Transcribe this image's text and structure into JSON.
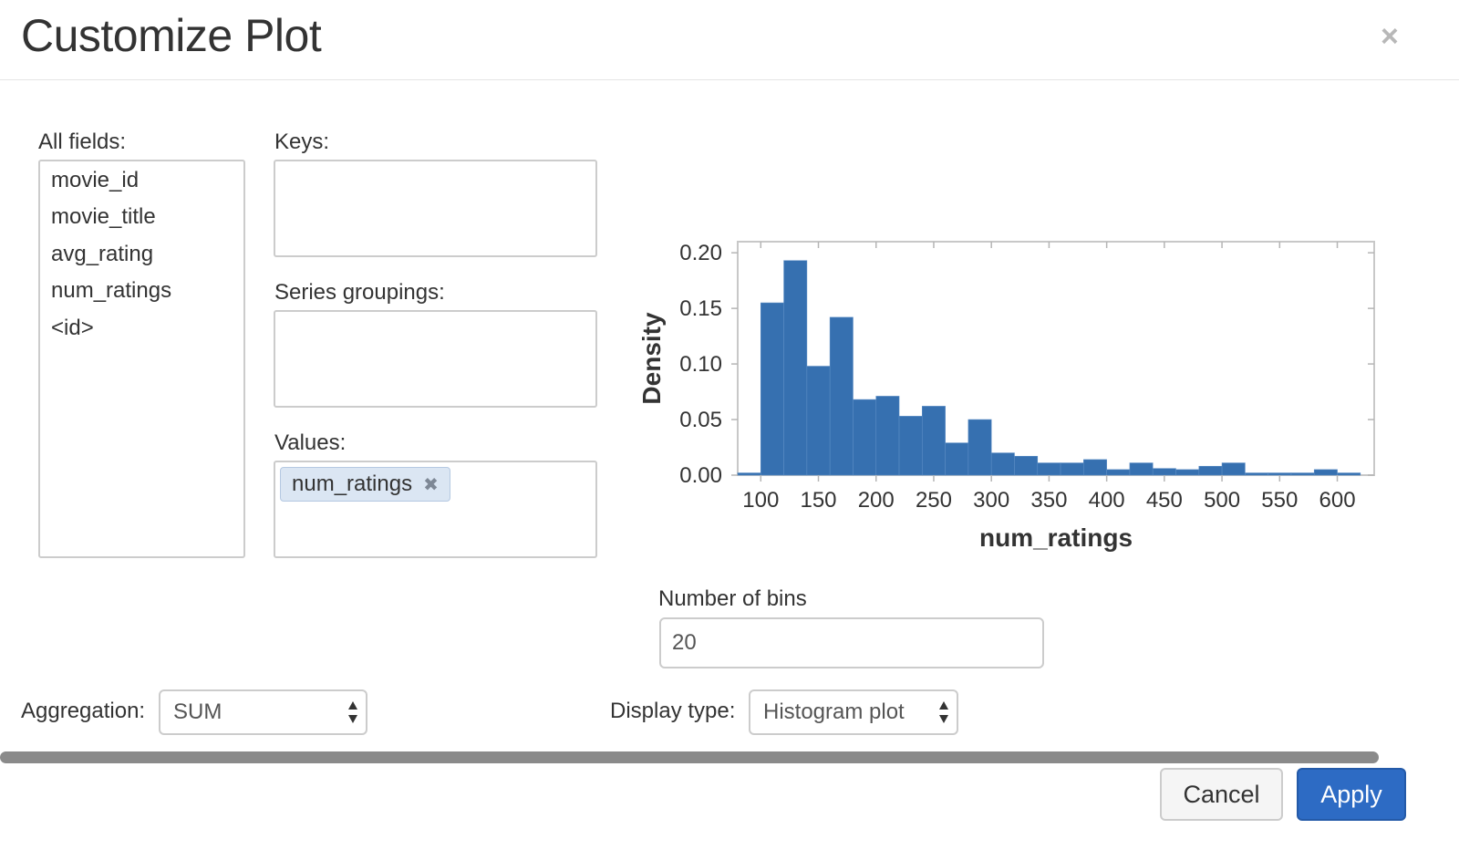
{
  "dialog": {
    "title": "Customize Plot",
    "close_label": "×"
  },
  "all_fields": {
    "label": "All fields:",
    "items": [
      "movie_id",
      "movie_title",
      "avg_rating",
      "num_ratings",
      "<id>"
    ]
  },
  "keys": {
    "label": "Keys:"
  },
  "series_groupings": {
    "label": "Series groupings:"
  },
  "values": {
    "label": "Values:",
    "chip": "num_ratings",
    "chip_remove": "✖"
  },
  "bins": {
    "label": "Number of bins",
    "value": "20"
  },
  "aggregation": {
    "label": "Aggregation:",
    "value": "SUM"
  },
  "display_type": {
    "label": "Display type:",
    "value": "Histogram plot"
  },
  "buttons": {
    "cancel": "Cancel",
    "apply": "Apply"
  },
  "colors": {
    "bar": "#3670b0",
    "primary": "#2d6bc4"
  },
  "chart_data": {
    "type": "bar",
    "xlabel": "num_ratings",
    "ylabel": "Density",
    "xlim": [
      80,
      632
    ],
    "ylim": [
      0,
      0.21
    ],
    "xticks": [
      100,
      150,
      200,
      250,
      300,
      350,
      400,
      450,
      500,
      550,
      600
    ],
    "yticks": [
      "0.00",
      "0.05",
      "0.10",
      "0.15",
      "0.20"
    ],
    "bin_width": 20,
    "bins": [
      {
        "x0": 80,
        "value": 0.002
      },
      {
        "x0": 100,
        "value": 0.155
      },
      {
        "x0": 120,
        "value": 0.193
      },
      {
        "x0": 140,
        "value": 0.098
      },
      {
        "x0": 160,
        "value": 0.142
      },
      {
        "x0": 180,
        "value": 0.068
      },
      {
        "x0": 200,
        "value": 0.071
      },
      {
        "x0": 220,
        "value": 0.053
      },
      {
        "x0": 240,
        "value": 0.062
      },
      {
        "x0": 260,
        "value": 0.029
      },
      {
        "x0": 280,
        "value": 0.05
      },
      {
        "x0": 300,
        "value": 0.02
      },
      {
        "x0": 320,
        "value": 0.017
      },
      {
        "x0": 340,
        "value": 0.011
      },
      {
        "x0": 360,
        "value": 0.011
      },
      {
        "x0": 380,
        "value": 0.014
      },
      {
        "x0": 400,
        "value": 0.005
      },
      {
        "x0": 420,
        "value": 0.011
      },
      {
        "x0": 440,
        "value": 0.006
      },
      {
        "x0": 460,
        "value": 0.005
      },
      {
        "x0": 480,
        "value": 0.008
      },
      {
        "x0": 500,
        "value": 0.011
      },
      {
        "x0": 520,
        "value": 0.002
      },
      {
        "x0": 540,
        "value": 0.002
      },
      {
        "x0": 560,
        "value": 0.002
      },
      {
        "x0": 580,
        "value": 0.005
      },
      {
        "x0": 600,
        "value": 0.002
      }
    ]
  }
}
